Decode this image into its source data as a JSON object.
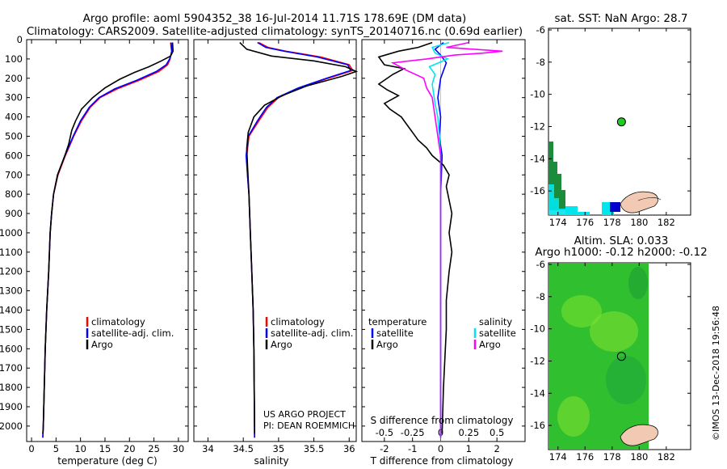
{
  "header": {
    "line1": "Argo profile: aoml 5904352_38 16-Jul-2014 11.71S 178.69E (DM data)",
    "line2": "Climatology: CARS2009. Satellite-adjusted climatology: synTS_20140716.nc (0.69d earlier)"
  },
  "colors": {
    "climatology": "#ff0000",
    "satellite": "#0000ff",
    "argo": "#000000",
    "sat_salinity": "#00e5ee",
    "argo_salinity": "#ff00ff"
  },
  "chart_data": [
    {
      "id": "temperature",
      "type": "line",
      "xlabel": "temperature (deg C)",
      "ylabel": "",
      "xlim": [
        -1,
        32
      ],
      "ylim": [
        2080,
        0
      ],
      "xticks": [
        "0",
        "5",
        "10",
        "15",
        "20",
        "25",
        "30"
      ],
      "yticks": [
        "0",
        "100",
        "200",
        "300",
        "400",
        "500",
        "600",
        "700",
        "800",
        "900",
        "1000",
        "1100",
        "1200",
        "1300",
        "1400",
        "1500",
        "1600",
        "1700",
        "1800",
        "1900",
        "2000"
      ],
      "legend": [
        "climatology",
        "satellite-adj. clim.",
        "Argo"
      ],
      "series": [
        {
          "name": "climatology",
          "pts": [
            [
              28.4,
              15
            ],
            [
              28.6,
              60
            ],
            [
              28.3,
              100
            ],
            [
              27.8,
              130
            ],
            [
              26,
              165
            ],
            [
              22,
              210
            ],
            [
              17.5,
              255
            ],
            [
              14,
              300
            ],
            [
              12,
              350
            ],
            [
              10.2,
              420
            ],
            [
              8.6,
              500
            ],
            [
              7.6,
              560
            ],
            [
              6.9,
              600
            ],
            [
              5.4,
              700
            ],
            [
              4.5,
              800
            ],
            [
              4.1,
              900
            ],
            [
              3.8,
              1000
            ],
            [
              3.5,
              1200
            ],
            [
              3.1,
              1400
            ],
            [
              2.8,
              1600
            ],
            [
              2.6,
              1800
            ],
            [
              2.4,
              2000
            ],
            [
              2.3,
              2060
            ]
          ]
        },
        {
          "name": "satellite-adj. clim.",
          "pts": [
            [
              28.5,
              15
            ],
            [
              28.7,
              60
            ],
            [
              28.2,
              100
            ],
            [
              27.5,
              130
            ],
            [
              25.5,
              165
            ],
            [
              21.5,
              210
            ],
            [
              17,
              255
            ],
            [
              13.8,
              300
            ],
            [
              11.8,
              350
            ],
            [
              10,
              420
            ],
            [
              8.5,
              500
            ],
            [
              7.5,
              560
            ],
            [
              6.8,
              600
            ],
            [
              5.3,
              700
            ],
            [
              4.5,
              800
            ],
            [
              4.1,
              900
            ],
            [
              3.8,
              1000
            ],
            [
              3.5,
              1200
            ],
            [
              3.1,
              1400
            ],
            [
              2.8,
              1600
            ],
            [
              2.6,
              1800
            ],
            [
              2.4,
              2000
            ],
            [
              2.3,
              2060
            ]
          ]
        },
        {
          "name": "Argo",
          "pts": [
            [
              28.8,
              15
            ],
            [
              28.9,
              60
            ],
            [
              28.4,
              85
            ],
            [
              26.5,
              110
            ],
            [
              24,
              140
            ],
            [
              21,
              170
            ],
            [
              18,
              205
            ],
            [
              15,
              250
            ],
            [
              12.5,
              300
            ],
            [
              10.2,
              360
            ],
            [
              9,
              420
            ],
            [
              8.2,
              470
            ],
            [
              7.6,
              540
            ],
            [
              6.8,
              600
            ],
            [
              5.3,
              700
            ],
            [
              4.5,
              800
            ],
            [
              4.1,
              900
            ],
            [
              3.8,
              1000
            ],
            [
              3.5,
              1200
            ],
            [
              3.1,
              1400
            ],
            [
              2.8,
              1600
            ],
            [
              2.6,
              1800
            ],
            [
              2.4,
              2000
            ],
            [
              2.3,
              2040
            ]
          ]
        }
      ]
    },
    {
      "id": "salinity",
      "type": "line",
      "xlabel": "salinity",
      "xlim": [
        33.8,
        36.1
      ],
      "ylim": [
        2080,
        0
      ],
      "xticks": [
        "34",
        "34.5",
        "35",
        "35.5",
        "36"
      ],
      "legend": [
        "climatology",
        "satellite-adj. clim.",
        "Argo"
      ],
      "series": [
        {
          "name": "climatology",
          "pts": [
            [
              34.72,
              15
            ],
            [
              34.85,
              40
            ],
            [
              35.1,
              60
            ],
            [
              35.6,
              90
            ],
            [
              36.0,
              130
            ],
            [
              36.05,
              160
            ],
            [
              35.7,
              200
            ],
            [
              35.3,
              250
            ],
            [
              35.0,
              300
            ],
            [
              34.85,
              350
            ],
            [
              34.72,
              420
            ],
            [
              34.58,
              500
            ],
            [
              34.55,
              600
            ],
            [
              34.56,
              700
            ],
            [
              34.58,
              800
            ],
            [
              34.6,
              1000
            ],
            [
              34.62,
              1200
            ],
            [
              34.64,
              1400
            ],
            [
              34.65,
              1600
            ],
            [
              34.66,
              2060
            ]
          ]
        },
        {
          "name": "satellite-adj. clim.",
          "pts": [
            [
              34.7,
              15
            ],
            [
              34.82,
              40
            ],
            [
              35.08,
              60
            ],
            [
              35.55,
              90
            ],
            [
              35.98,
              130
            ],
            [
              36.02,
              160
            ],
            [
              35.68,
              200
            ],
            [
              35.28,
              250
            ],
            [
              34.98,
              300
            ],
            [
              34.83,
              350
            ],
            [
              34.7,
              420
            ],
            [
              34.57,
              500
            ],
            [
              34.54,
              600
            ],
            [
              34.56,
              700
            ],
            [
              34.58,
              800
            ],
            [
              34.6,
              1000
            ],
            [
              34.62,
              1200
            ],
            [
              34.64,
              1400
            ],
            [
              34.65,
              1600
            ],
            [
              34.66,
              2060
            ]
          ]
        },
        {
          "name": "Argo",
          "pts": [
            [
              34.45,
              15
            ],
            [
              34.55,
              50
            ],
            [
              34.9,
              85
            ],
            [
              35.5,
              110
            ],
            [
              35.95,
              140
            ],
            [
              36.1,
              165
            ],
            [
              35.9,
              190
            ],
            [
              35.4,
              240
            ],
            [
              35.05,
              290
            ],
            [
              34.8,
              340
            ],
            [
              34.65,
              400
            ],
            [
              34.57,
              480
            ],
            [
              34.55,
              560
            ],
            [
              34.56,
              650
            ],
            [
              34.58,
              800
            ],
            [
              34.6,
              1000
            ],
            [
              34.62,
              1200
            ],
            [
              34.64,
              1400
            ],
            [
              34.65,
              1600
            ],
            [
              34.66,
              2040
            ]
          ]
        }
      ]
    },
    {
      "id": "difference",
      "type": "line",
      "xlabel": "T difference from climatology",
      "xlabel_top": "S difference from climatology",
      "xlim": [
        -2.8,
        3.0
      ],
      "ylim": [
        2080,
        0
      ],
      "xticks": [
        "-2",
        "-1",
        "0",
        "1",
        "2"
      ],
      "sticks": [
        "-0.5",
        "-0.25",
        "0",
        "0.25",
        "0.5"
      ],
      "legend_temperature_title": "temperature",
      "legend_salinity_title": "salinity",
      "legend": [
        "satellite",
        "Argo",
        "satellite",
        "Argo"
      ],
      "series": [
        {
          "name": "T satellite",
          "pts": [
            [
              0.1,
              15
            ],
            [
              -0.2,
              50
            ],
            [
              0,
              80
            ],
            [
              0.2,
              120
            ],
            [
              0,
              200
            ],
            [
              -0.1,
              300
            ],
            [
              0,
              400
            ],
            [
              -0.05,
              500
            ],
            [
              0.05,
              600
            ],
            [
              0,
              800
            ],
            [
              0,
              2060
            ]
          ]
        },
        {
          "name": "T Argo",
          "pts": [
            [
              -0.3,
              15
            ],
            [
              -0.8,
              40
            ],
            [
              -1.5,
              60
            ],
            [
              -2.2,
              90
            ],
            [
              -2.0,
              130
            ],
            [
              -1.3,
              150
            ],
            [
              -1.7,
              180
            ],
            [
              -2.2,
              230
            ],
            [
              -1.9,
              260
            ],
            [
              -1.5,
              290
            ],
            [
              -2.0,
              330
            ],
            [
              -1.8,
              360
            ],
            [
              -1.4,
              400
            ],
            [
              -1.2,
              440
            ],
            [
              -1.0,
              480
            ],
            [
              -0.8,
              520
            ],
            [
              -0.5,
              560
            ],
            [
              -0.3,
              600
            ],
            [
              0.1,
              650
            ],
            [
              0.3,
              700
            ],
            [
              0.2,
              760
            ],
            [
              0.4,
              900
            ],
            [
              0.3,
              1000
            ],
            [
              0.4,
              1100
            ],
            [
              0.3,
              1200
            ],
            [
              0.2,
              1350
            ],
            [
              0.2,
              1500
            ],
            [
              0.1,
              1800
            ],
            [
              0.05,
              2040
            ]
          ]
        },
        {
          "name": "S satellite",
          "pts": [
            [
              0.3,
              15
            ],
            [
              -0.3,
              40
            ],
            [
              -0.2,
              70
            ],
            [
              0.25,
              100
            ],
            [
              -0.4,
              140
            ],
            [
              -0.2,
              180
            ],
            [
              -0.3,
              230
            ],
            [
              -0.25,
              280
            ],
            [
              -0.2,
              330
            ],
            [
              -0.1,
              400
            ],
            [
              0,
              600
            ],
            [
              0,
              2060
            ]
          ]
        },
        {
          "name": "S Argo",
          "pts": [
            [
              1.0,
              15
            ],
            [
              0.2,
              40
            ],
            [
              2.2,
              60
            ],
            [
              1.5,
              70
            ],
            [
              0.5,
              80
            ],
            [
              -0.5,
              100
            ],
            [
              -1.7,
              120
            ],
            [
              -1.2,
              160
            ],
            [
              -0.6,
              200
            ],
            [
              -0.5,
              250
            ],
            [
              -0.3,
              300
            ],
            [
              -0.2,
              400
            ],
            [
              -0.1,
              500
            ],
            [
              0,
              600
            ],
            [
              0,
              2060
            ]
          ]
        }
      ]
    }
  ],
  "credit": {
    "line1": "US ARGO PROJECT",
    "line2": "PI: DEAN ROEMMICH"
  },
  "map_sst": {
    "title": "sat. SST: NaN Argo: 28.7",
    "yticks": [
      "-6",
      "-8",
      "-10",
      "-12",
      "-14",
      "-16"
    ],
    "xticks": [
      "174",
      "176",
      "178",
      "180",
      "182"
    ],
    "marker": {
      "lon": 178.69,
      "lat": -11.71
    }
  },
  "map_sla": {
    "title_line1": "Altim. SLA: 0.033",
    "title_line2": "Argo h1000: -0.12 h2000: -0.12",
    "yticks": [
      "-6",
      "-8",
      "-10",
      "-12",
      "-14",
      "-16"
    ],
    "xticks": [
      "174",
      "176",
      "178",
      "180",
      "182"
    ],
    "marker": {
      "lon": 178.69,
      "lat": -11.71
    }
  },
  "imos_stamp": "©IMOS 13-Dec-2018 19:56:48"
}
